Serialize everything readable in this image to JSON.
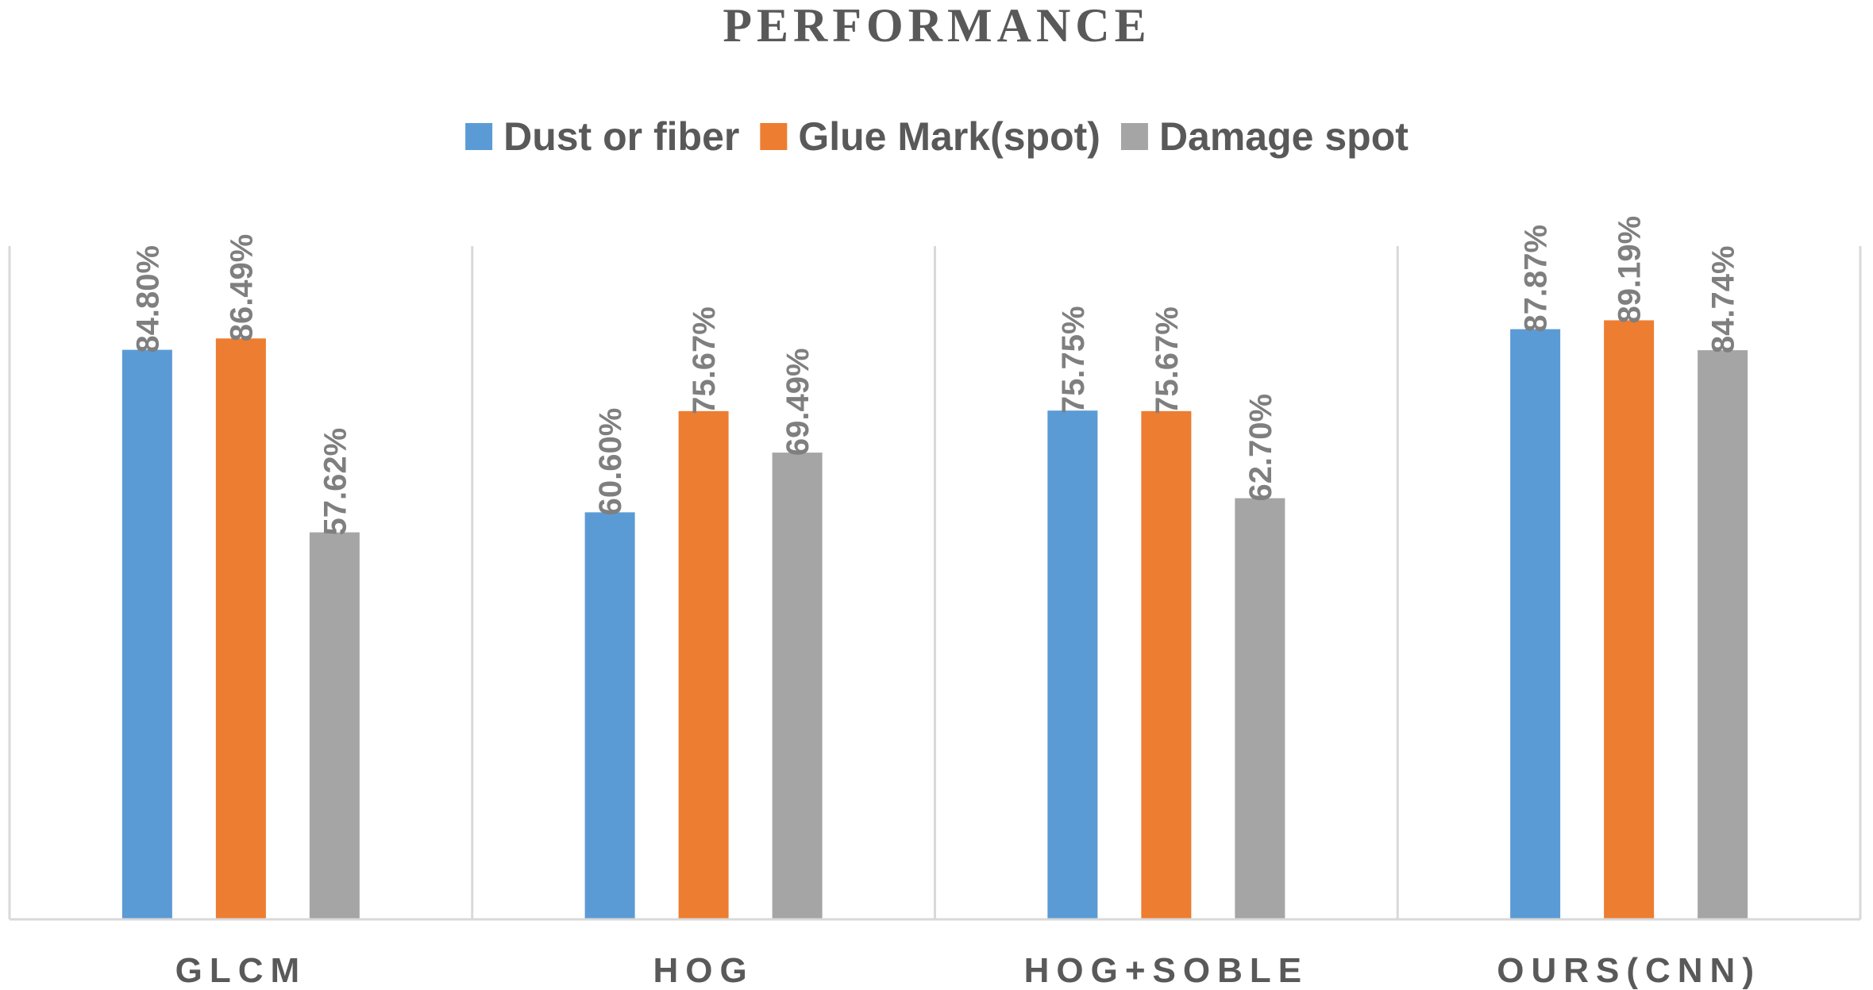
{
  "chart_data": {
    "type": "bar",
    "title": "PERFORMANCE",
    "categories": [
      "GLCM",
      "HOG",
      "HOG+SOBLE",
      "OURS(CNN)"
    ],
    "series": [
      {
        "name": "Dust or fiber",
        "color": "#5b9bd5",
        "values": [
          84.8,
          60.6,
          75.75,
          87.87
        ],
        "labels": [
          "84.80%",
          "60.60%",
          "75.75%",
          "87.87%"
        ]
      },
      {
        "name": "Glue Mark(spot)",
        "color": "#ed7d31",
        "values": [
          86.49,
          75.67,
          75.67,
          89.19
        ],
        "labels": [
          "86.49%",
          "75.67%",
          "75.67%",
          "89.19%"
        ]
      },
      {
        "name": "Damage spot",
        "color": "#a5a5a5",
        "values": [
          57.62,
          69.49,
          62.7,
          84.74
        ],
        "labels": [
          "57.62%",
          "69.49%",
          "62.70%",
          "84.74%"
        ]
      }
    ],
    "xlabel": "",
    "ylabel": "",
    "ylim": [
      0,
      100
    ],
    "grid": false,
    "legend_position": "top",
    "value_axis_shown": false
  }
}
